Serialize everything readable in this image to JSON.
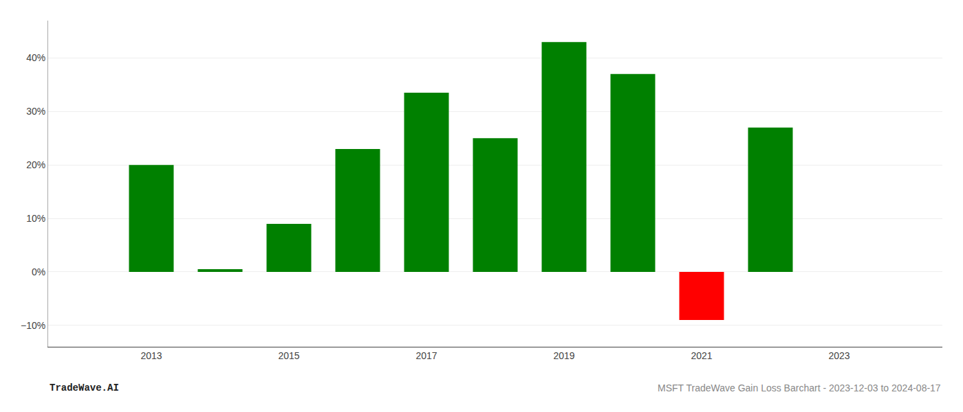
{
  "chart_data": {
    "type": "bar",
    "x": [
      2013,
      2014,
      2015,
      2016,
      2017,
      2018,
      2019,
      2020,
      2021,
      2022
    ],
    "values": [
      20.0,
      0.5,
      9.0,
      23.0,
      33.5,
      25.0,
      43.0,
      37.0,
      -9.0,
      27.0
    ],
    "colors": [
      "#008000",
      "#008000",
      "#008000",
      "#008000",
      "#008000",
      "#008000",
      "#008000",
      "#008000",
      "#ff0000",
      "#008000"
    ],
    "xlim": [
      2011.5,
      2024.5
    ],
    "xticks": [
      2013,
      2015,
      2017,
      2019,
      2021,
      2023
    ],
    "ylim": [
      -14,
      47
    ],
    "yticks": [
      {
        "value": -10,
        "label": "−10%"
      },
      {
        "value": 0,
        "label": "0%"
      },
      {
        "value": 10,
        "label": "10%"
      },
      {
        "value": 20,
        "label": "20%"
      },
      {
        "value": 30,
        "label": "30%"
      },
      {
        "value": 40,
        "label": "40%"
      }
    ],
    "grid": true,
    "annotations": [
      "TradeWave.AI",
      "MSFT TradeWave Gain Loss Barchart - 2023-12-03 to 2024-08-17"
    ]
  }
}
